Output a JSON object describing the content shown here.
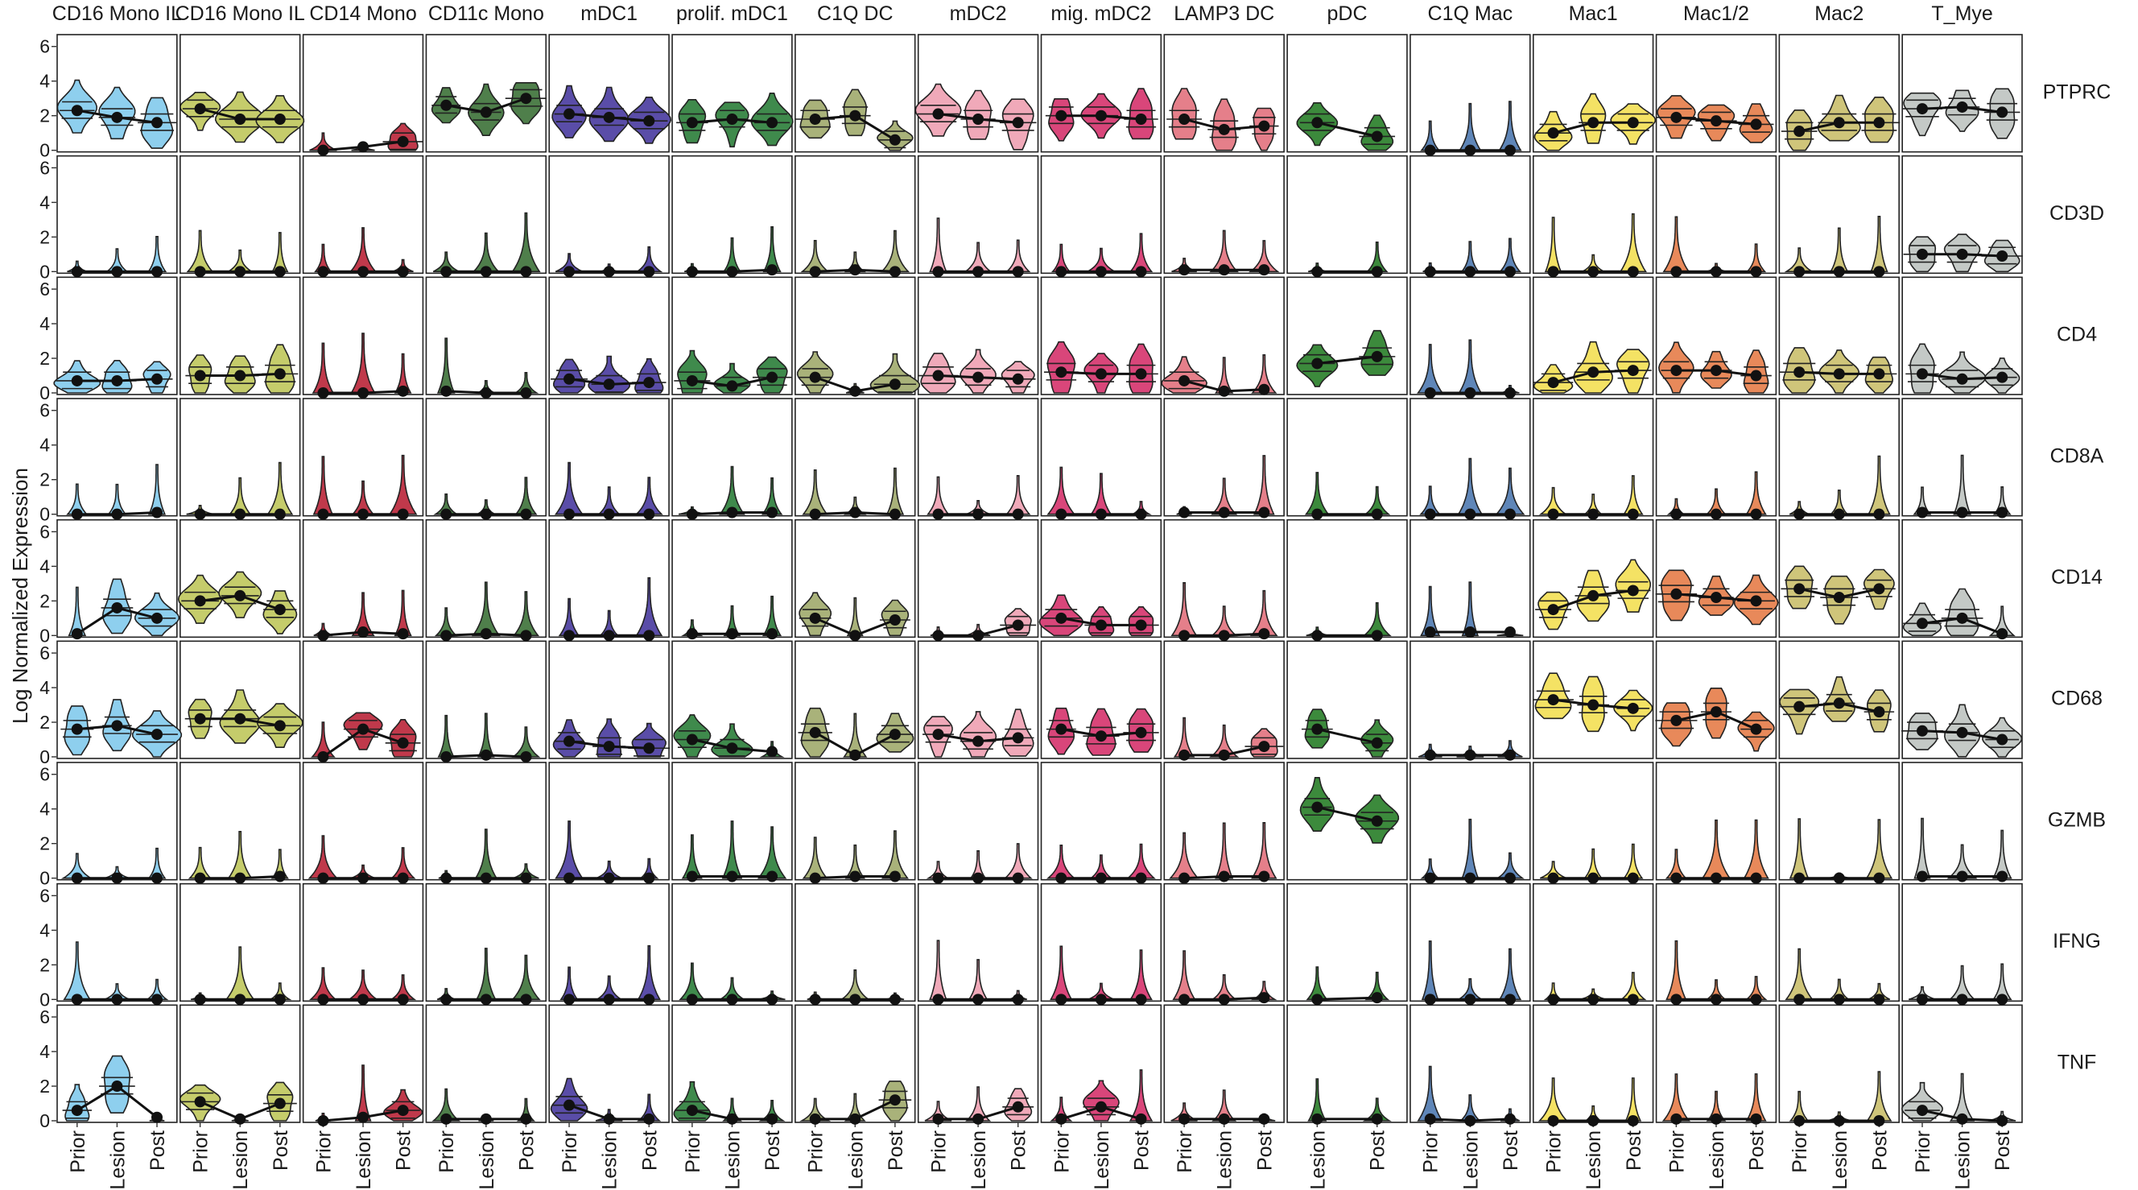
{
  "chart_data": {
    "type": "violin",
    "ylabel": "Log Normalized Expression",
    "ylim": [
      0,
      6.5
    ],
    "yticks": [
      0,
      2,
      4,
      6
    ],
    "cell_types": [
      "CD16 Mono IL",
      "CD16 Mono IL",
      "CD14 Mono",
      "CD11c Mono",
      "mDC1",
      "prolif. mDC1",
      "C1Q DC",
      "mDC2",
      "mig. mDC2",
      "LAMP3 DC",
      "pDC",
      "C1Q Mac",
      "Mac1",
      "Mac1/2",
      "Mac2",
      "T_Mye"
    ],
    "genes": [
      "PTPRC",
      "CD3D",
      "CD4",
      "CD8A",
      "CD14",
      "CD68",
      "GZMB",
      "IFNG",
      "TNF"
    ],
    "conditions": [
      "Prior",
      "Lesion",
      "Post"
    ],
    "panel_conditions": [
      [
        "Prior",
        "Lesion",
        "Post"
      ],
      [
        "Prior",
        "Lesion",
        "Post"
      ],
      [
        "Prior",
        "Lesion",
        "Post"
      ],
      [
        "Prior",
        "Lesion",
        "Post"
      ],
      [
        "Prior",
        "Lesion",
        "Post"
      ],
      [
        "Prior",
        "Lesion",
        "Post"
      ],
      [
        "Prior",
        "Lesion",
        "Post"
      ],
      [
        "Prior",
        "Lesion",
        "Post"
      ],
      [
        "Prior",
        "Lesion",
        "Post"
      ],
      [
        "Prior",
        "Lesion",
        "Post"
      ],
      [
        "Lesion",
        "Post"
      ],
      [
        "Prior",
        "Lesion",
        "Post"
      ],
      [
        "Prior",
        "Lesion",
        "Post"
      ],
      [
        "Prior",
        "Lesion",
        "Post"
      ],
      [
        "Prior",
        "Lesion",
        "Post"
      ],
      [
        "Prior",
        "Lesion",
        "Post"
      ]
    ],
    "colors": [
      "#8ecfee",
      "#c5cc6b",
      "#c0394b",
      "#4f7f4b",
      "#5a4da8",
      "#3f8a4c",
      "#a9b27a",
      "#f0a9b9",
      "#d9467a",
      "#e57f8a",
      "#3c8a3c",
      "#5f86b8",
      "#f4e264",
      "#e8895a",
      "#cfc57a",
      "#c4c9c6"
    ],
    "medians": [
      [
        [
          2.3,
          1.9,
          1.6
        ],
        [
          0.0,
          0.0,
          0.0
        ],
        [
          0.7,
          0.7,
          0.8
        ],
        [
          0.0,
          0.0,
          0.1
        ],
        [
          0.1,
          1.6,
          1.0
        ],
        [
          1.6,
          1.8,
          1.3
        ],
        [
          0.0,
          0.0,
          0.0
        ],
        [
          0.0,
          0.0,
          0.0
        ],
        [
          0.6,
          2.0,
          0.2
        ]
      ],
      [
        [
          2.4,
          1.8,
          1.8
        ],
        [
          0.0,
          0.0,
          0.0
        ],
        [
          1.0,
          1.0,
          1.1
        ],
        [
          0.0,
          0.0,
          0.0
        ],
        [
          2.0,
          2.3,
          1.5
        ],
        [
          2.2,
          2.2,
          1.8
        ],
        [
          0.0,
          0.0,
          0.1
        ],
        [
          0.0,
          0.0,
          0.0
        ],
        [
          1.1,
          0.1,
          1.0
        ]
      ],
      [
        [
          0.0,
          0.2,
          0.5
        ],
        [
          0.0,
          0.0,
          0.0
        ],
        [
          0.0,
          0.0,
          0.1
        ],
        [
          0.0,
          0.0,
          0.0
        ],
        [
          0.0,
          0.2,
          0.1
        ],
        [
          0.0,
          1.6,
          0.8
        ],
        [
          0.0,
          0.0,
          0.0
        ],
        [
          0.0,
          0.0,
          0.0
        ],
        [
          0.0,
          0.2,
          0.6
        ]
      ],
      [
        [
          2.6,
          2.2,
          3.0
        ],
        [
          0.0,
          0.0,
          0.0
        ],
        [
          0.1,
          0.0,
          0.0
        ],
        [
          0.0,
          0.0,
          0.0
        ],
        [
          0.0,
          0.1,
          0.0
        ],
        [
          0.0,
          0.1,
          0.0
        ],
        [
          0.0,
          0.0,
          0.0
        ],
        [
          0.0,
          0.0,
          0.0
        ],
        [
          0.1,
          0.1,
          0.1
        ]
      ],
      [
        [
          2.1,
          1.9,
          1.7
        ],
        [
          0.0,
          0.0,
          0.0
        ],
        [
          0.8,
          0.5,
          0.6
        ],
        [
          0.0,
          0.0,
          0.0
        ],
        [
          0.0,
          0.0,
          0.0
        ],
        [
          0.9,
          0.6,
          0.5
        ],
        [
          0.0,
          0.0,
          0.0
        ],
        [
          0.0,
          0.0,
          0.0
        ],
        [
          0.9,
          0.1,
          0.1
        ]
      ],
      [
        [
          1.6,
          1.8,
          1.6
        ],
        [
          0.0,
          0.0,
          0.1
        ],
        [
          0.7,
          0.4,
          0.9
        ],
        [
          0.0,
          0.1,
          0.1
        ],
        [
          0.1,
          0.1,
          0.1
        ],
        [
          1.0,
          0.5,
          0.3
        ],
        [
          0.1,
          0.1,
          0.1
        ],
        [
          0.0,
          0.0,
          0.0
        ],
        [
          0.6,
          0.1,
          0.1
        ]
      ],
      [
        [
          1.8,
          2.0,
          0.6
        ],
        [
          0.0,
          0.1,
          0.0
        ],
        [
          0.9,
          0.1,
          0.5
        ],
        [
          0.0,
          0.1,
          0.0
        ],
        [
          1.0,
          0.0,
          0.9
        ],
        [
          1.4,
          0.1,
          1.3
        ],
        [
          0.0,
          0.1,
          0.1
        ],
        [
          0.0,
          0.0,
          0.0
        ],
        [
          0.1,
          0.1,
          1.2
        ]
      ],
      [
        [
          2.1,
          1.8,
          1.6
        ],
        [
          0.0,
          0.0,
          0.0
        ],
        [
          1.0,
          0.9,
          0.8
        ],
        [
          0.0,
          0.0,
          0.0
        ],
        [
          0.0,
          0.0,
          0.6
        ],
        [
          1.3,
          0.9,
          1.1
        ],
        [
          0.0,
          0.0,
          0.0
        ],
        [
          0.0,
          0.0,
          0.0
        ],
        [
          0.1,
          0.1,
          0.8
        ]
      ],
      [
        [
          2.0,
          2.0,
          1.8
        ],
        [
          0.0,
          0.0,
          0.0
        ],
        [
          1.2,
          1.1,
          1.1
        ],
        [
          0.0,
          0.0,
          0.0
        ],
        [
          1.0,
          0.6,
          0.6
        ],
        [
          1.6,
          1.2,
          1.4
        ],
        [
          0.0,
          0.0,
          0.0
        ],
        [
          0.0,
          0.0,
          0.0
        ],
        [
          0.1,
          0.8,
          0.1
        ]
      ],
      [
        [
          1.8,
          1.2,
          1.4
        ],
        [
          0.1,
          0.1,
          0.1
        ],
        [
          0.7,
          0.1,
          0.2
        ],
        [
          0.1,
          0.1,
          0.1
        ],
        [
          0.0,
          0.0,
          0.1
        ],
        [
          0.1,
          0.1,
          0.6
        ],
        [
          0.0,
          0.1,
          0.1
        ],
        [
          0.0,
          0.0,
          0.1
        ],
        [
          0.1,
          0.1,
          0.1
        ]
      ],
      [
        [
          1.6,
          0.8
        ],
        [
          0.0,
          0.0
        ],
        [
          1.7,
          2.1
        ],
        [
          0.0,
          0.0
        ],
        [
          0.0,
          0.0
        ],
        [
          1.6,
          0.8
        ],
        [
          4.1,
          3.3
        ],
        [
          0.0,
          0.1
        ],
        [
          0.1,
          0.1
        ]
      ],
      [
        [
          0.0,
          0.0,
          0.0
        ],
        [
          0.0,
          0.0,
          0.0
        ],
        [
          0.0,
          0.0,
          0.0
        ],
        [
          0.0,
          0.0,
          0.0
        ],
        [
          0.2,
          0.2,
          0.2
        ],
        [
          0.1,
          0.1,
          0.1
        ],
        [
          0.0,
          0.0,
          0.0
        ],
        [
          0.0,
          0.0,
          0.0
        ],
        [
          0.1,
          0.0,
          0.1
        ]
      ],
      [
        [
          1.0,
          1.6,
          1.6
        ],
        [
          0.0,
          0.0,
          0.0
        ],
        [
          0.6,
          1.2,
          1.3
        ],
        [
          0.0,
          0.0,
          0.0
        ],
        [
          1.5,
          2.3,
          2.6
        ],
        [
          3.3,
          3.0,
          2.8
        ],
        [
          0.0,
          0.0,
          0.0
        ],
        [
          0.0,
          0.0,
          0.0
        ],
        [
          0.0,
          0.0,
          0.0
        ]
      ],
      [
        [
          1.9,
          1.7,
          1.5
        ],
        [
          0.0,
          0.0,
          0.0
        ],
        [
          1.3,
          1.3,
          1.0
        ],
        [
          0.0,
          0.0,
          0.0
        ],
        [
          2.4,
          2.2,
          2.0
        ],
        [
          2.1,
          2.6,
          1.6
        ],
        [
          0.0,
          0.0,
          0.0
        ],
        [
          0.0,
          0.0,
          0.0
        ],
        [
          0.1,
          0.1,
          0.1
        ]
      ],
      [
        [
          1.1,
          1.6,
          1.6
        ],
        [
          0.0,
          0.0,
          0.0
        ],
        [
          1.2,
          1.1,
          1.1
        ],
        [
          0.0,
          0.0,
          0.0
        ],
        [
          2.7,
          2.2,
          2.7
        ],
        [
          2.9,
          3.1,
          2.6
        ],
        [
          0.0,
          0.0,
          0.0
        ],
        [
          0.0,
          0.0,
          0.0
        ],
        [
          0.0,
          0.0,
          0.0
        ]
      ],
      [
        [
          2.4,
          2.5,
          2.2
        ],
        [
          1.0,
          1.0,
          0.9
        ],
        [
          1.1,
          0.8,
          0.9
        ],
        [
          0.1,
          0.1,
          0.1
        ],
        [
          0.7,
          1.0,
          0.1
        ],
        [
          1.5,
          1.4,
          1.0
        ],
        [
          0.1,
          0.1,
          0.1
        ],
        [
          0.0,
          0.0,
          0.0
        ],
        [
          0.6,
          0.1,
          0.0
        ]
      ]
    ]
  }
}
